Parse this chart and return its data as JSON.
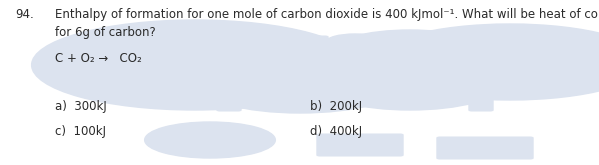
{
  "question_number": "94.",
  "line1": "Enthalpy of formation for one mole of carbon dioxide is 400 kJmol⁻¹. What will be heat of combustion",
  "line2": "for 6g of carbon?",
  "equation": "C + O₂ →   CO₂",
  "option_a": "a)  300kJ",
  "option_b": "b)  200kJ",
  "option_c": "c)  100kJ",
  "option_d": "d)  400kJ",
  "bg_color": "#ffffff",
  "text_color": "#2a2a2a",
  "watermark_color": "#dce3ef",
  "font_size_main": 8.5,
  "font_size_eq": 8.5,
  "font_size_options": 8.5
}
